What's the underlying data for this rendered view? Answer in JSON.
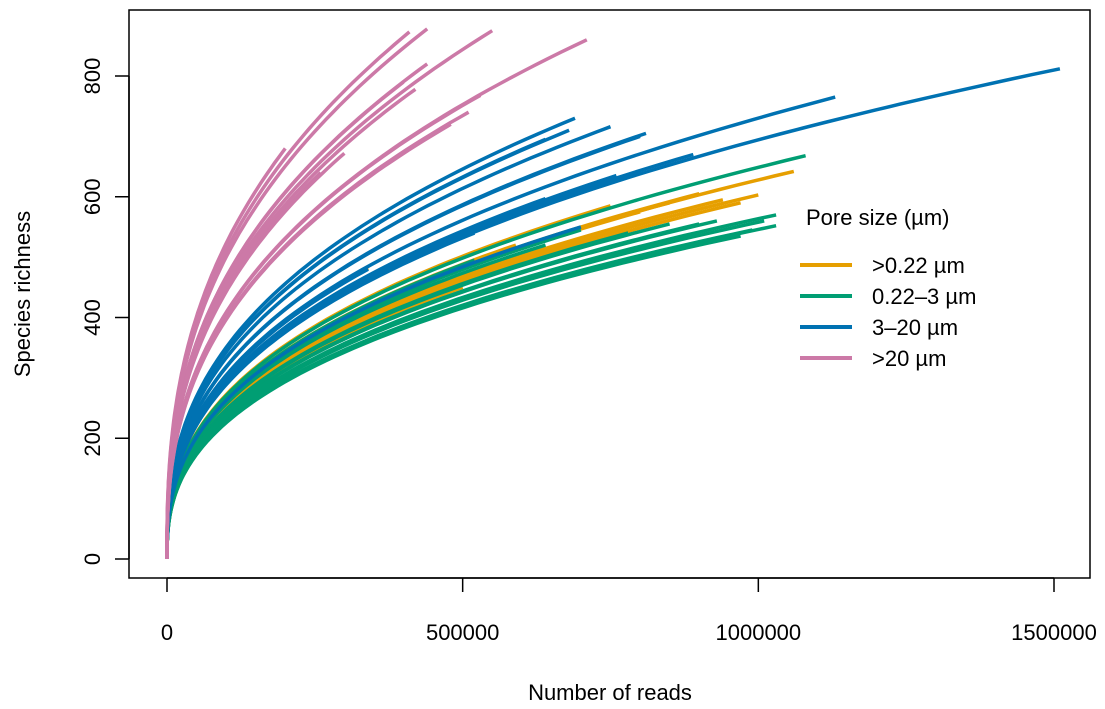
{
  "chart_data": {
    "type": "line",
    "xlabel": "Number of reads",
    "ylabel": "Species richness",
    "xlim": [
      0,
      1550000
    ],
    "ylim": [
      0,
      900
    ],
    "x_ticks": [
      0,
      500000,
      1000000,
      1500000
    ],
    "x_tick_labels": [
      "0",
      "500000",
      "1000000",
      "1500000"
    ],
    "y_ticks": [
      0,
      200,
      400,
      600,
      800
    ],
    "y_tick_labels": [
      "0",
      "200",
      "400",
      "600",
      "800"
    ],
    "legend": {
      "title": "Pore size (µm)",
      "placement": "right"
    },
    "grid": false,
    "series": [
      {
        "name": ">0.22 µm",
        "color": "#E69F00",
        "curves": [
          {
            "n": 340000,
            "s": 482
          },
          {
            "n": 500000,
            "s": 450
          },
          {
            "n": 580000,
            "s": 442
          },
          {
            "n": 590000,
            "s": 520
          },
          {
            "n": 700000,
            "s": 548
          },
          {
            "n": 750000,
            "s": 585
          },
          {
            "n": 800000,
            "s": 575
          },
          {
            "n": 850000,
            "s": 590
          },
          {
            "n": 900000,
            "s": 605
          },
          {
            "n": 940000,
            "s": 595
          },
          {
            "n": 970000,
            "s": 590
          },
          {
            "n": 1000000,
            "s": 603
          },
          {
            "n": 1060000,
            "s": 642
          }
        ]
      },
      {
        "name": "0.22–3 µm",
        "color": "#009E73",
        "curves": [
          {
            "n": 520000,
            "s": 495
          },
          {
            "n": 640000,
            "s": 520
          },
          {
            "n": 700000,
            "s": 545
          },
          {
            "n": 780000,
            "s": 540
          },
          {
            "n": 850000,
            "s": 555
          },
          {
            "n": 900000,
            "s": 555
          },
          {
            "n": 930000,
            "s": 560
          },
          {
            "n": 970000,
            "s": 535
          },
          {
            "n": 990000,
            "s": 545
          },
          {
            "n": 1010000,
            "s": 560
          },
          {
            "n": 1030000,
            "s": 552
          },
          {
            "n": 1030000,
            "s": 570
          },
          {
            "n": 1080000,
            "s": 668
          }
        ]
      },
      {
        "name": "3–20 µm",
        "color": "#0072B2",
        "curves": [
          {
            "n": 340000,
            "s": 480
          },
          {
            "n": 420000,
            "s": 500
          },
          {
            "n": 520000,
            "s": 540
          },
          {
            "n": 640000,
            "s": 597
          },
          {
            "n": 640000,
            "s": 695
          },
          {
            "n": 680000,
            "s": 710
          },
          {
            "n": 690000,
            "s": 730
          },
          {
            "n": 700000,
            "s": 550
          },
          {
            "n": 750000,
            "s": 716
          },
          {
            "n": 760000,
            "s": 635
          },
          {
            "n": 800000,
            "s": 700
          },
          {
            "n": 810000,
            "s": 705
          },
          {
            "n": 890000,
            "s": 670
          },
          {
            "n": 1130000,
            "s": 765
          },
          {
            "n": 1510000,
            "s": 812
          }
        ]
      },
      {
        "name": ">20 µm",
        "color": "#CC79A7",
        "curves": [
          {
            "n": 200000,
            "s": 680
          },
          {
            "n": 260000,
            "s": 640
          },
          {
            "n": 300000,
            "s": 672
          },
          {
            "n": 400000,
            "s": 790
          },
          {
            "n": 410000,
            "s": 873
          },
          {
            "n": 420000,
            "s": 778
          },
          {
            "n": 440000,
            "s": 820
          },
          {
            "n": 440000,
            "s": 878
          },
          {
            "n": 480000,
            "s": 720
          },
          {
            "n": 510000,
            "s": 740
          },
          {
            "n": 530000,
            "s": 768
          },
          {
            "n": 550000,
            "s": 875
          },
          {
            "n": 710000,
            "s": 860
          }
        ]
      }
    ]
  }
}
